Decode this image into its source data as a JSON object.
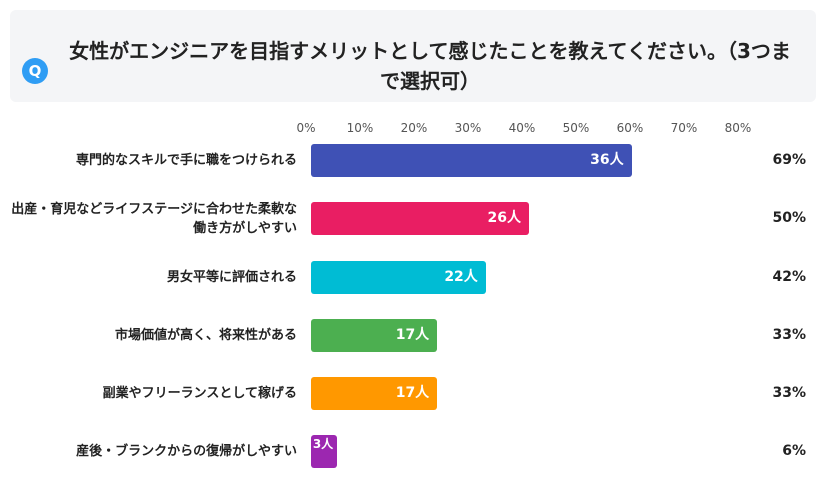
{
  "question": {
    "badge": "Q",
    "text": "女性がエンジニアを目指すメリットとして感じたことを教えてください。（3つまで選択可）"
  },
  "chart_data": {
    "type": "bar",
    "orientation": "horizontal",
    "title": "",
    "xlabel": "",
    "ylabel": "",
    "xlim": [
      0,
      80
    ],
    "x_ticks": [
      "0%",
      "10%",
      "20%",
      "30%",
      "40%",
      "50%",
      "60%",
      "70%",
      "80%"
    ],
    "categories": [
      "専門的なスキルで手に職をつけられる",
      "出産・育児などライフステージに合わせた柔軟な働き方がしやすい",
      "男女平等に評価される",
      "市場価値が高く、将来性がある",
      "副業やフリーランスとして稼げる",
      "産後・ブランクからの復帰がしやすい"
    ],
    "counts": [
      "36人",
      "26人",
      "22人",
      "17人",
      "17人",
      "3人"
    ],
    "values": [
      69,
      50,
      42,
      33,
      33,
      6
    ],
    "value_labels": [
      "69%",
      "50%",
      "42%",
      "33%",
      "33%",
      "6%"
    ],
    "colors": [
      "#3f51b5",
      "#e91e63",
      "#00bcd4",
      "#4caf50",
      "#ff9800",
      "#9c27b0"
    ],
    "grid": false,
    "legend": "none"
  }
}
